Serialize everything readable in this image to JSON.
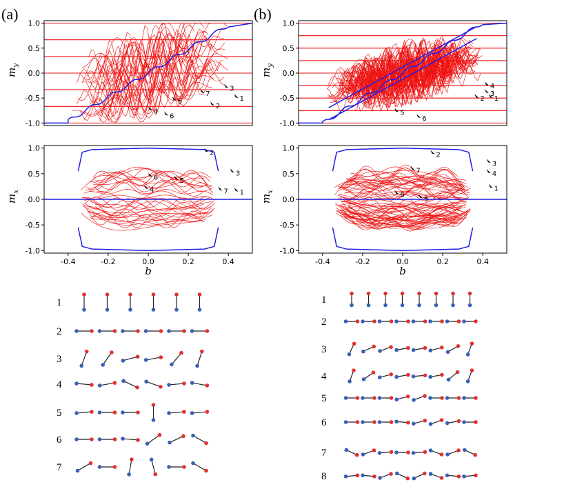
{
  "panels": [
    {
      "label": "(a)",
      "n_states": 7
    },
    {
      "label": "(b)",
      "n_states": 8
    }
  ],
  "colors": {
    "field_lines": "#ee1111",
    "branches": "#e11",
    "ground": "#1f1fe6",
    "spin_red": "#e23030",
    "spin_blue": "#3a5fb5",
    "bond": "#222222"
  },
  "chart_data": [
    {
      "type": "line",
      "panel": "(a)",
      "ylabel": "m_y",
      "xlabel": "",
      "xlim": [
        -0.52,
        0.52
      ],
      "ylim": [
        -1.05,
        1.05
      ],
      "yticks": [
        "1.0",
        "0.5",
        "0.0",
        "-0.5",
        "-1.0"
      ],
      "ytick_values": [
        1.0,
        0.5,
        0.0,
        -0.5,
        -1.0
      ],
      "xticks": [],
      "hlines": [
        1.0,
        0.667,
        0.333,
        0.0,
        -0.333,
        -0.667,
        -1.0
      ],
      "annotations": [
        "1",
        "3",
        "7",
        "5",
        "4",
        "6",
        "2"
      ]
    },
    {
      "type": "line",
      "panel": "(a)",
      "ylabel": "m_x",
      "xlabel": "b",
      "xlim": [
        -0.52,
        0.52
      ],
      "ylim": [
        -1.05,
        1.05
      ],
      "yticks": [
        "1.0",
        "0.5",
        "0.0",
        "-0.5",
        "-1.0"
      ],
      "ytick_values": [
        1.0,
        0.5,
        0.0,
        -0.5,
        -1.0
      ],
      "xticks": [
        "-0.4",
        "-0.2",
        "0.0",
        "0.2",
        "0.4"
      ],
      "xtick_values": [
        -0.4,
        -0.2,
        0.0,
        0.2,
        0.4
      ],
      "annotations": [
        "2",
        "3",
        "6",
        "5",
        "4",
        "7",
        "1"
      ]
    },
    {
      "type": "line",
      "panel": "(b)",
      "ylabel": "m_y",
      "xlabel": "",
      "xlim": [
        -0.52,
        0.52
      ],
      "ylim": [
        -1.05,
        1.05
      ],
      "yticks": [
        "1.0",
        "0.5",
        "0.0",
        "-0.5",
        "-1.0"
      ],
      "ytick_values": [
        1.0,
        0.5,
        0.0,
        -0.5,
        -1.0
      ],
      "xticks": [],
      "hlines": [
        1.0,
        0.75,
        0.5,
        0.25,
        0.0,
        -0.25,
        -0.5,
        -0.75,
        -1.0
      ],
      "annotations": [
        "1",
        "4",
        "3",
        "5",
        "6",
        "2"
      ]
    },
    {
      "type": "line",
      "panel": "(b)",
      "ylabel": "m_x",
      "xlabel": "b",
      "xlim": [
        -0.52,
        0.52
      ],
      "ylim": [
        -1.05,
        1.05
      ],
      "yticks": [
        "1.0",
        "0.5",
        "0.0",
        "-0.5",
        "-1.0"
      ],
      "ytick_values": [
        1.0,
        0.5,
        0.0,
        -0.5,
        -1.0
      ],
      "xticks": [
        "-0.4",
        "-0.2",
        "0.0",
        "0.2",
        "0.4"
      ],
      "xtick_values": [
        -0.4,
        -0.2,
        0.0,
        0.2,
        0.4
      ],
      "annotations": [
        "2",
        "3",
        "4",
        "7",
        "1",
        "6",
        "5"
      ]
    }
  ],
  "spin_configs": [
    {
      "panel": "(a)",
      "rows": [
        {
          "label": "1",
          "angles_deg": [
            90,
            90,
            90,
            90,
            90,
            90
          ]
        },
        {
          "label": "2",
          "angles_deg": [
            0,
            0,
            0,
            0,
            0,
            0
          ]
        },
        {
          "label": "3",
          "angles_deg": [
            70,
            55,
            15,
            10,
            50,
            72
          ]
        },
        {
          "label": "4",
          "angles_deg": [
            -5,
            10,
            -25,
            -20,
            5,
            -10
          ]
        },
        {
          "label": "5",
          "angles_deg": [
            5,
            0,
            0,
            90,
            5,
            5
          ]
        },
        {
          "label": "6",
          "angles_deg": [
            0,
            0,
            -5,
            35,
            25,
            -30
          ]
        },
        {
          "label": "7",
          "angles_deg": [
            30,
            0,
            80,
            -75,
            0,
            -30
          ]
        }
      ]
    },
    {
      "panel": "(b)",
      "rows": [
        {
          "label": "1",
          "angles_deg": [
            90,
            90,
            90,
            90,
            90,
            90,
            90,
            90
          ]
        },
        {
          "label": "2",
          "angles_deg": [
            0,
            0,
            0,
            0,
            0,
            0,
            0,
            0
          ]
        },
        {
          "label": "3",
          "angles_deg": [
            65,
            25,
            20,
            10,
            10,
            15,
            30,
            70
          ]
        },
        {
          "label": "4",
          "angles_deg": [
            70,
            35,
            15,
            10,
            5,
            10,
            40,
            70
          ]
        },
        {
          "label": "5",
          "angles_deg": [
            0,
            0,
            0,
            15,
            20,
            0,
            0,
            0
          ]
        },
        {
          "label": "6",
          "angles_deg": [
            0,
            0,
            0,
            -5,
            15,
            20,
            10,
            0
          ]
        },
        {
          "label": "7",
          "angles_deg": [
            -25,
            20,
            5,
            0,
            5,
            -20,
            20,
            -25
          ]
        },
        {
          "label": "8",
          "angles_deg": [
            5,
            -5,
            20,
            -25,
            25,
            -20,
            -5,
            5
          ]
        }
      ]
    }
  ]
}
